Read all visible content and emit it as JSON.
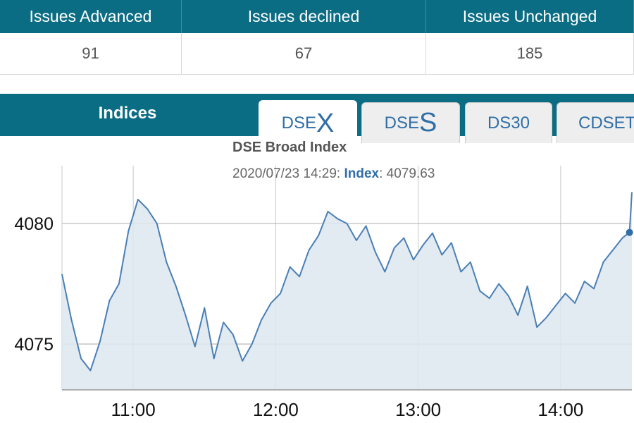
{
  "stats": {
    "headers": [
      "Issues Advanced",
      "Issues declined",
      "Issues Unchanged"
    ],
    "values": [
      "91",
      "67",
      "185"
    ]
  },
  "indices": {
    "label": "Indices",
    "tabs": [
      {
        "prefix": "DSE",
        "big": "X",
        "active": true
      },
      {
        "prefix": "DSE",
        "big": "S",
        "active": false
      },
      {
        "prefix": "DS30",
        "big": "",
        "active": false
      },
      {
        "prefix": "CDSET",
        "big": "",
        "active": false
      }
    ]
  },
  "tooltip": {
    "datetime": "2020/07/23 14:29:",
    "label": "Index",
    "value": "4079.63"
  },
  "colors": {
    "header_bg": "#0b6d83",
    "line": "#4a7fb5",
    "fill": "#dde6f0",
    "tab_text": "#2f6ea6"
  },
  "chart_data": {
    "type": "area",
    "title": "DSE Broad Index",
    "xlabel": "",
    "ylabel": "",
    "x_ticks": [
      "11:00",
      "12:00",
      "13:00",
      "14:00"
    ],
    "y_ticks": [
      4075,
      4080
    ],
    "xlim": [
      "10:30",
      "14:30"
    ],
    "ylim": [
      4073.1,
      4082.4
    ],
    "grid": true,
    "series": [
      {
        "values": [
          [
            "10:30",
            4077.9
          ],
          [
            "10:34",
            4076.0
          ],
          [
            "10:38",
            4074.4
          ],
          [
            "10:42",
            4073.9
          ],
          [
            "10:46",
            4075.1
          ],
          [
            "10:50",
            4076.8
          ],
          [
            "10:54",
            4077.5
          ],
          [
            "10:58",
            4079.7
          ],
          [
            "11:02",
            4081.0
          ],
          [
            "11:06",
            4080.6
          ],
          [
            "11:10",
            4080.0
          ],
          [
            "11:14",
            4078.4
          ],
          [
            "11:18",
            4077.4
          ],
          [
            "11:22",
            4076.2
          ],
          [
            "11:26",
            4074.9
          ],
          [
            "11:30",
            4076.5
          ],
          [
            "11:34",
            4074.4
          ],
          [
            "11:38",
            4075.9
          ],
          [
            "11:42",
            4075.4
          ],
          [
            "11:46",
            4074.3
          ],
          [
            "11:50",
            4075.0
          ],
          [
            "11:54",
            4076.0
          ],
          [
            "11:58",
            4076.7
          ],
          [
            "12:02",
            4077.1
          ],
          [
            "12:06",
            4078.2
          ],
          [
            "12:10",
            4077.8
          ],
          [
            "12:14",
            4078.9
          ],
          [
            "12:18",
            4079.5
          ],
          [
            "12:22",
            4080.5
          ],
          [
            "12:26",
            4080.2
          ],
          [
            "12:30",
            4080.0
          ],
          [
            "12:34",
            4079.3
          ],
          [
            "12:38",
            4079.9
          ],
          [
            "12:42",
            4078.8
          ],
          [
            "12:46",
            4078.0
          ],
          [
            "12:50",
            4079.0
          ],
          [
            "12:54",
            4079.4
          ],
          [
            "12:58",
            4078.5
          ],
          [
            "13:02",
            4079.1
          ],
          [
            "13:06",
            4079.6
          ],
          [
            "13:10",
            4078.7
          ],
          [
            "13:14",
            4079.2
          ],
          [
            "13:18",
            4078.0
          ],
          [
            "13:22",
            4078.4
          ],
          [
            "13:26",
            4077.2
          ],
          [
            "13:30",
            4076.9
          ],
          [
            "13:34",
            4077.5
          ],
          [
            "13:38",
            4077.0
          ],
          [
            "13:42",
            4076.2
          ],
          [
            "13:46",
            4077.4
          ],
          [
            "13:50",
            4075.7
          ],
          [
            "13:54",
            4076.1
          ],
          [
            "13:58",
            4076.6
          ],
          [
            "14:02",
            4077.1
          ],
          [
            "14:06",
            4076.7
          ],
          [
            "14:10",
            4077.6
          ],
          [
            "14:14",
            4077.3
          ],
          [
            "14:18",
            4078.4
          ],
          [
            "14:22",
            4078.9
          ],
          [
            "14:26",
            4079.4
          ],
          [
            "14:29",
            4079.63
          ],
          [
            "14:30",
            4081.3
          ]
        ]
      }
    ],
    "highlight": {
      "x": "14:29",
      "y": 4079.63
    }
  }
}
